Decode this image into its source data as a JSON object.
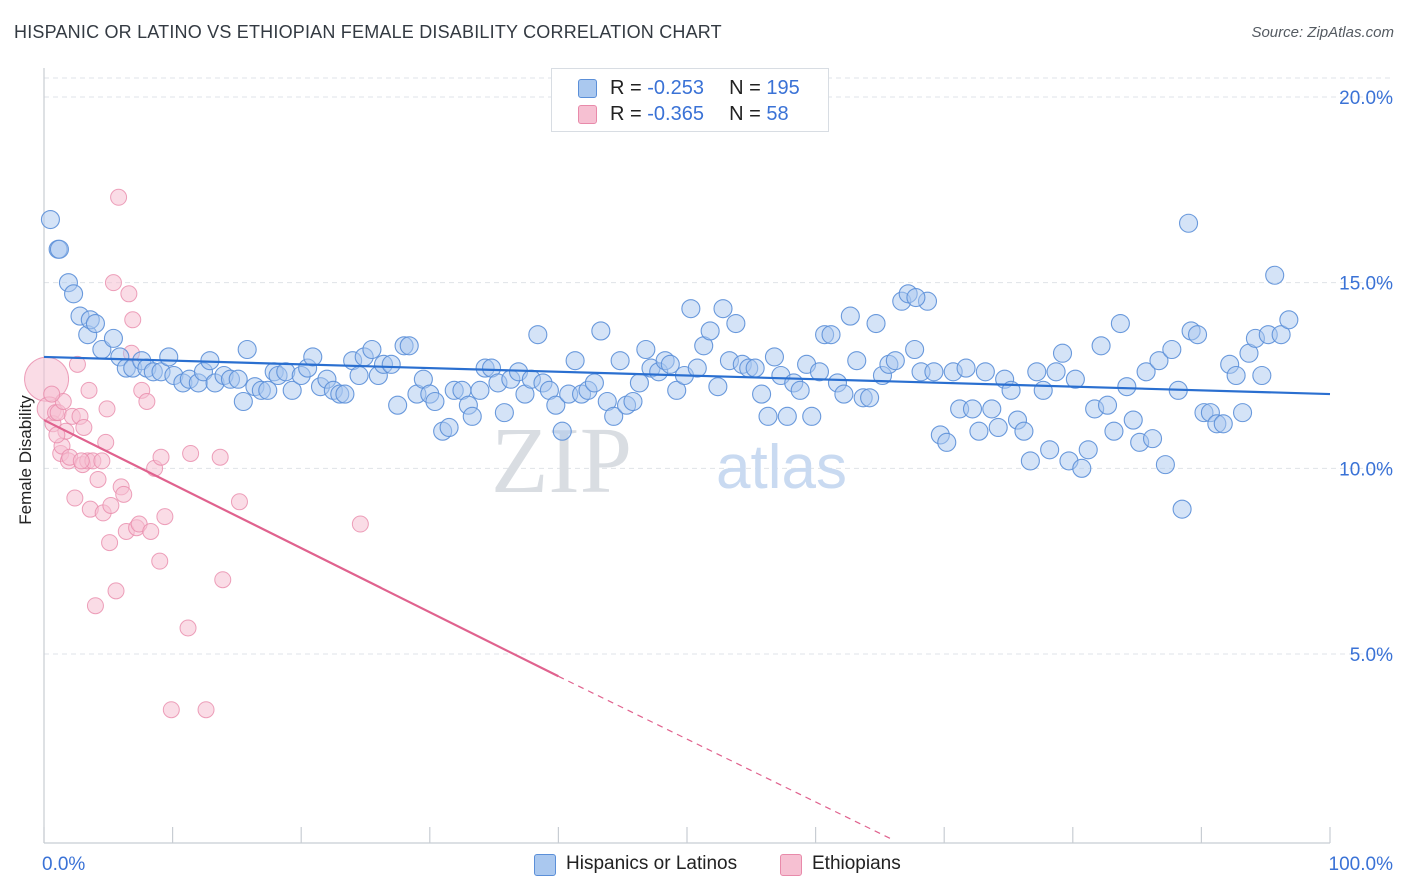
{
  "header": {
    "title": "HISPANIC OR LATINO VS ETHIOPIAN FEMALE DISABILITY CORRELATION CHART",
    "source": "Source: ZipAtlas.com"
  },
  "watermark": {
    "zip": "ZIP",
    "atlas": "atlas"
  },
  "legend": {
    "rows": [
      {
        "r_label": "R = ",
        "r_value": "-0.253",
        "n_label": "N = ",
        "n_value": "195"
      },
      {
        "r_label": "R = ",
        "r_value": "-0.365",
        "n_label": "N = ",
        "n_value": "58"
      }
    ]
  },
  "colors": {
    "blue_fill": "#aac8ef",
    "blue_stroke": "#5b8fd8",
    "blue_line": "#2a6fd0",
    "pink_fill": "#f6c0d2",
    "pink_stroke": "#e88aaa",
    "pink_line": "#e0628e",
    "tick_label": "#3a72d6",
    "grid": "#dfe3e8"
  },
  "chart_data": {
    "type": "scatter",
    "title": "HISPANIC OR LATINO VS ETHIOPIAN FEMALE DISABILITY CORRELATION CHART",
    "xlabel": "",
    "ylabel": "Female Disability",
    "xlim": [
      0,
      100
    ],
    "ylim": [
      0,
      21
    ],
    "x_tick_labels": [
      "0.0%",
      "100.0%"
    ],
    "y_ticks": [
      5,
      10,
      15,
      20
    ],
    "y_tick_labels": [
      "5.0%",
      "10.0%",
      "15.0%",
      "20.0%"
    ],
    "grid": true,
    "legend_position": "top-center",
    "series": [
      {
        "name": "Hispanics or Latinos",
        "r": -0.253,
        "n": 195,
        "trend": {
          "x": [
            0,
            100
          ],
          "y": [
            13.0,
            12.0
          ]
        },
        "points": [
          [
            0.5,
            16.7
          ],
          [
            1.1,
            15.9
          ],
          [
            1.2,
            15.9
          ],
          [
            1.9,
            15.0
          ],
          [
            2.3,
            14.7
          ],
          [
            2.8,
            14.1
          ],
          [
            3.4,
            13.6
          ],
          [
            3.6,
            14.0
          ],
          [
            4.0,
            13.9
          ],
          [
            4.5,
            13.2
          ],
          [
            5.4,
            13.5
          ],
          [
            5.9,
            13.0
          ],
          [
            6.4,
            12.7
          ],
          [
            6.9,
            12.7
          ],
          [
            7.6,
            12.9
          ],
          [
            8.0,
            12.7
          ],
          [
            8.5,
            12.6
          ],
          [
            9.1,
            12.6
          ],
          [
            9.7,
            13.0
          ],
          [
            10.1,
            12.5
          ],
          [
            10.8,
            12.3
          ],
          [
            11.3,
            12.4
          ],
          [
            12.0,
            12.3
          ],
          [
            12.4,
            12.6
          ],
          [
            12.9,
            12.9
          ],
          [
            13.3,
            12.3
          ],
          [
            14.0,
            12.5
          ],
          [
            14.5,
            12.4
          ],
          [
            15.1,
            12.4
          ],
          [
            15.5,
            11.8
          ],
          [
            15.8,
            13.2
          ],
          [
            16.4,
            12.2
          ],
          [
            16.9,
            12.1
          ],
          [
            17.4,
            12.1
          ],
          [
            17.9,
            12.6
          ],
          [
            18.2,
            12.5
          ],
          [
            18.8,
            12.6
          ],
          [
            19.3,
            12.1
          ],
          [
            20.0,
            12.5
          ],
          [
            20.5,
            12.7
          ],
          [
            20.9,
            13.0
          ],
          [
            21.5,
            12.2
          ],
          [
            22.0,
            12.4
          ],
          [
            22.5,
            12.1
          ],
          [
            23.0,
            12.0
          ],
          [
            23.4,
            12.0
          ],
          [
            24.0,
            12.9
          ],
          [
            24.5,
            12.5
          ],
          [
            24.9,
            13.0
          ],
          [
            25.5,
            13.2
          ],
          [
            26.0,
            12.5
          ],
          [
            26.4,
            12.8
          ],
          [
            27.0,
            12.8
          ],
          [
            27.5,
            11.7
          ],
          [
            28.0,
            13.3
          ],
          [
            28.4,
            13.3
          ],
          [
            29.0,
            12.0
          ],
          [
            29.5,
            12.4
          ],
          [
            30.0,
            12.0
          ],
          [
            30.4,
            11.8
          ],
          [
            31.0,
            11.0
          ],
          [
            31.5,
            11.1
          ],
          [
            31.9,
            12.1
          ],
          [
            32.5,
            12.1
          ],
          [
            33.0,
            11.7
          ],
          [
            33.3,
            11.4
          ],
          [
            33.9,
            12.1
          ],
          [
            34.3,
            12.7
          ],
          [
            34.8,
            12.7
          ],
          [
            35.3,
            12.3
          ],
          [
            35.8,
            11.5
          ],
          [
            36.3,
            12.4
          ],
          [
            36.9,
            12.6
          ],
          [
            37.4,
            12.0
          ],
          [
            37.9,
            12.4
          ],
          [
            38.4,
            13.6
          ],
          [
            38.8,
            12.3
          ],
          [
            39.3,
            12.1
          ],
          [
            39.8,
            11.7
          ],
          [
            40.3,
            11.0
          ],
          [
            40.8,
            12.0
          ],
          [
            41.3,
            12.9
          ],
          [
            41.8,
            12.0
          ],
          [
            42.3,
            12.1
          ],
          [
            42.8,
            12.3
          ],
          [
            43.3,
            13.7
          ],
          [
            43.8,
            11.8
          ],
          [
            44.3,
            11.4
          ],
          [
            44.8,
            12.9
          ],
          [
            45.3,
            11.7
          ],
          [
            45.8,
            11.8
          ],
          [
            46.3,
            12.3
          ],
          [
            46.8,
            13.2
          ],
          [
            47.2,
            12.7
          ],
          [
            47.8,
            12.6
          ],
          [
            48.3,
            12.9
          ],
          [
            48.7,
            12.8
          ],
          [
            49.2,
            12.1
          ],
          [
            49.8,
            12.5
          ],
          [
            50.3,
            14.3
          ],
          [
            50.8,
            12.7
          ],
          [
            51.3,
            13.3
          ],
          [
            51.8,
            13.7
          ],
          [
            52.4,
            12.2
          ],
          [
            52.8,
            14.3
          ],
          [
            53.3,
            12.9
          ],
          [
            53.8,
            13.9
          ],
          [
            54.3,
            12.8
          ],
          [
            54.8,
            12.7
          ],
          [
            55.3,
            12.7
          ],
          [
            55.8,
            12.0
          ],
          [
            56.3,
            11.4
          ],
          [
            56.8,
            13.0
          ],
          [
            57.3,
            12.5
          ],
          [
            57.8,
            11.4
          ],
          [
            58.3,
            12.3
          ],
          [
            58.8,
            12.1
          ],
          [
            59.3,
            12.8
          ],
          [
            59.7,
            11.4
          ],
          [
            60.3,
            12.6
          ],
          [
            60.7,
            13.6
          ],
          [
            61.2,
            13.6
          ],
          [
            61.7,
            12.3
          ],
          [
            62.2,
            12.0
          ],
          [
            62.7,
            14.1
          ],
          [
            63.2,
            12.9
          ],
          [
            63.7,
            11.9
          ],
          [
            64.2,
            11.9
          ],
          [
            64.7,
            13.9
          ],
          [
            65.2,
            12.5
          ],
          [
            65.7,
            12.8
          ],
          [
            66.2,
            12.9
          ],
          [
            66.7,
            14.5
          ],
          [
            67.2,
            14.7
          ],
          [
            67.7,
            13.2
          ],
          [
            68.2,
            12.6
          ],
          [
            68.7,
            14.5
          ],
          [
            69.2,
            12.6
          ],
          [
            69.7,
            10.9
          ],
          [
            70.2,
            10.7
          ],
          [
            70.7,
            12.6
          ],
          [
            71.2,
            11.6
          ],
          [
            71.7,
            12.7
          ],
          [
            72.2,
            11.6
          ],
          [
            72.7,
            11.0
          ],
          [
            73.2,
            12.6
          ],
          [
            73.7,
            11.6
          ],
          [
            74.2,
            11.1
          ],
          [
            74.7,
            12.4
          ],
          [
            75.2,
            12.1
          ],
          [
            75.7,
            11.3
          ],
          [
            76.2,
            11.0
          ],
          [
            76.7,
            10.2
          ],
          [
            77.2,
            12.6
          ],
          [
            77.7,
            12.1
          ],
          [
            78.2,
            10.5
          ],
          [
            78.7,
            12.6
          ],
          [
            79.2,
            13.1
          ],
          [
            79.7,
            10.2
          ],
          [
            80.2,
            12.4
          ],
          [
            80.7,
            10.0
          ],
          [
            81.2,
            10.5
          ],
          [
            81.7,
            11.6
          ],
          [
            82.2,
            13.3
          ],
          [
            82.7,
            11.7
          ],
          [
            83.2,
            11.0
          ],
          [
            83.7,
            13.9
          ],
          [
            84.2,
            12.2
          ],
          [
            84.7,
            11.3
          ],
          [
            85.2,
            10.7
          ],
          [
            85.7,
            12.6
          ],
          [
            86.2,
            10.8
          ],
          [
            86.7,
            12.9
          ],
          [
            87.2,
            10.1
          ],
          [
            87.7,
            13.2
          ],
          [
            88.2,
            12.1
          ],
          [
            88.5,
            8.9
          ],
          [
            89.0,
            16.6
          ],
          [
            89.2,
            13.7
          ],
          [
            89.7,
            13.6
          ],
          [
            90.2,
            11.5
          ],
          [
            90.7,
            11.5
          ],
          [
            91.2,
            11.2
          ],
          [
            91.7,
            11.2
          ],
          [
            92.2,
            12.8
          ],
          [
            92.7,
            12.5
          ],
          [
            93.2,
            11.5
          ],
          [
            93.7,
            13.1
          ],
          [
            94.2,
            13.5
          ],
          [
            94.7,
            12.5
          ],
          [
            95.2,
            13.6
          ],
          [
            95.7,
            15.2
          ],
          [
            96.2,
            13.6
          ],
          [
            96.8,
            14.0
          ],
          [
            67.8,
            14.6
          ]
        ]
      },
      {
        "name": "Ethiopians",
        "r": -0.365,
        "n": 58,
        "trend": {
          "x": [
            0,
            40
          ],
          "y": [
            11.3,
            4.4
          ]
        },
        "trend_dashed": {
          "x": [
            40,
            66
          ],
          "y": [
            4.4,
            0
          ]
        },
        "points": [
          [
            0.2,
            12.4
          ],
          [
            0.4,
            11.6
          ],
          [
            0.7,
            11.2
          ],
          [
            0.9,
            11.5
          ],
          [
            1.1,
            11.5
          ],
          [
            1.3,
            10.4
          ],
          [
            1.4,
            10.6
          ],
          [
            1.5,
            11.8
          ],
          [
            1.7,
            11.0
          ],
          [
            1.9,
            10.2
          ],
          [
            2.0,
            10.3
          ],
          [
            2.2,
            11.4
          ],
          [
            2.4,
            9.2
          ],
          [
            2.6,
            12.8
          ],
          [
            2.8,
            11.4
          ],
          [
            3.0,
            10.1
          ],
          [
            3.1,
            11.1
          ],
          [
            3.4,
            10.2
          ],
          [
            3.5,
            12.1
          ],
          [
            3.6,
            8.9
          ],
          [
            3.8,
            10.2
          ],
          [
            4.0,
            6.3
          ],
          [
            4.2,
            9.7
          ],
          [
            4.5,
            10.2
          ],
          [
            4.6,
            8.8
          ],
          [
            4.8,
            10.7
          ],
          [
            4.9,
            11.6
          ],
          [
            5.1,
            8.0
          ],
          [
            5.2,
            9.0
          ],
          [
            5.4,
            15.0
          ],
          [
            5.6,
            6.7
          ],
          [
            5.8,
            17.3
          ],
          [
            6.0,
            9.5
          ],
          [
            6.2,
            9.3
          ],
          [
            6.4,
            8.3
          ],
          [
            6.6,
            14.7
          ],
          [
            6.8,
            13.1
          ],
          [
            6.9,
            14.0
          ],
          [
            7.2,
            8.4
          ],
          [
            7.4,
            8.5
          ],
          [
            7.6,
            12.1
          ],
          [
            8.0,
            11.8
          ],
          [
            8.3,
            8.3
          ],
          [
            8.6,
            10.0
          ],
          [
            9.0,
            7.5
          ],
          [
            9.1,
            10.3
          ],
          [
            9.4,
            8.7
          ],
          [
            9.9,
            3.5
          ],
          [
            11.2,
            5.7
          ],
          [
            11.4,
            10.4
          ],
          [
            12.6,
            3.5
          ],
          [
            13.7,
            10.3
          ],
          [
            13.9,
            7.0
          ],
          [
            15.2,
            9.1
          ],
          [
            24.6,
            8.5
          ],
          [
            0.6,
            12.0
          ],
          [
            1.0,
            10.9
          ],
          [
            2.9,
            10.2
          ]
        ]
      }
    ]
  },
  "bottom_legend": {
    "items": [
      {
        "label": "Hispanics or Latinos"
      },
      {
        "label": "Ethiopians"
      }
    ]
  }
}
